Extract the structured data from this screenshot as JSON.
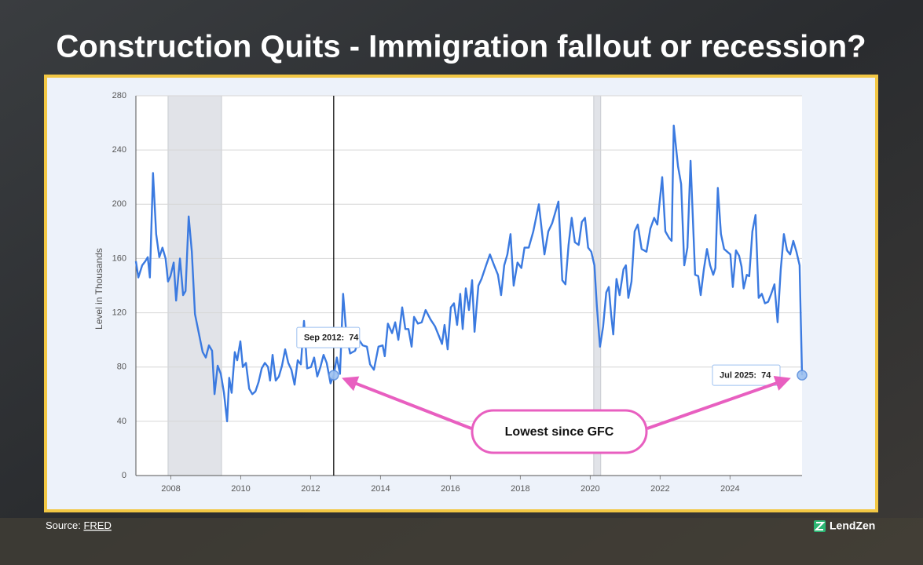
{
  "chart_data": {
    "type": "line",
    "title": "Construction Quits - Immigration fallout or recession?",
    "y_label": "Level in Thousands",
    "source_prefix": "Source:",
    "source_link": "FRED",
    "brand": "LendZen",
    "color": "#3b7ae0",
    "grid": "y",
    "xlim": [
      2007,
      2026.06
    ],
    "ylim": [
      0,
      280
    ],
    "xticks": [
      2008,
      2010,
      2012,
      2014,
      2016,
      2018,
      2020,
      2022,
      2024
    ],
    "yticks": [
      0,
      40,
      80,
      120,
      160,
      200,
      240,
      280
    ],
    "recessions": [
      [
        2007.92,
        2009.45
      ],
      [
        2020.1,
        2020.3
      ]
    ],
    "x": [
      2007.0,
      2007.07,
      2007.18,
      2007.27,
      2007.34,
      2007.4,
      2007.49,
      2007.58,
      2007.67,
      2007.76,
      2007.85,
      2007.92,
      2007.99,
      2008.08,
      2008.15,
      2008.26,
      2008.35,
      2008.42,
      2008.51,
      2008.6,
      2008.69,
      2008.8,
      2008.91,
      2009.0,
      2009.09,
      2009.18,
      2009.25,
      2009.34,
      2009.43,
      2009.52,
      2009.61,
      2009.67,
      2009.74,
      2009.83,
      2009.9,
      2009.99,
      2010.06,
      2010.15,
      2010.24,
      2010.33,
      2010.42,
      2010.51,
      2010.6,
      2010.69,
      2010.78,
      2010.84,
      2010.91,
      2011.0,
      2011.09,
      2011.18,
      2011.27,
      2011.36,
      2011.45,
      2011.54,
      2011.63,
      2011.72,
      2011.81,
      2011.9,
      2012.01,
      2012.1,
      2012.19,
      2012.28,
      2012.37,
      2012.46,
      2012.57,
      2012.66,
      2012.75,
      2012.84,
      2012.93,
      2013.02,
      2013.13,
      2013.27,
      2013.38,
      2013.49,
      2013.61,
      2013.7,
      2013.81,
      2013.94,
      2014.06,
      2014.12,
      2014.21,
      2014.33,
      2014.42,
      2014.51,
      2014.62,
      2014.71,
      2014.8,
      2014.89,
      2014.96,
      2015.07,
      2015.18,
      2015.29,
      2015.43,
      2015.56,
      2015.67,
      2015.76,
      2015.83,
      2015.92,
      2016.01,
      2016.1,
      2016.19,
      2016.28,
      2016.35,
      2016.44,
      2016.53,
      2016.62,
      2016.69,
      2016.8,
      2016.89,
      2017.02,
      2017.13,
      2017.25,
      2017.36,
      2017.45,
      2017.54,
      2017.63,
      2017.72,
      2017.81,
      2017.92,
      2018.03,
      2018.12,
      2018.24,
      2018.37,
      2018.53,
      2018.69,
      2018.8,
      2018.91,
      2019.09,
      2019.2,
      2019.29,
      2019.38,
      2019.47,
      2019.56,
      2019.67,
      2019.76,
      2019.85,
      2019.94,
      2020.03,
      2020.12,
      2020.19,
      2020.28,
      2020.37,
      2020.46,
      2020.53,
      2020.6,
      2020.66,
      2020.75,
      2020.84,
      2020.95,
      2021.02,
      2021.09,
      2021.18,
      2021.27,
      2021.36,
      2021.47,
      2021.61,
      2021.72,
      2021.83,
      2021.92,
      2022.06,
      2022.15,
      2022.26,
      2022.33,
      2022.39,
      2022.51,
      2022.6,
      2022.69,
      2022.78,
      2022.87,
      2023.0,
      2023.09,
      2023.16,
      2023.25,
      2023.34,
      2023.43,
      2023.52,
      2023.58,
      2023.65,
      2023.74,
      2023.83,
      2023.92,
      2024.01,
      2024.08,
      2024.17,
      2024.26,
      2024.33,
      2024.39,
      2024.48,
      2024.55,
      2024.64,
      2024.73,
      2024.82,
      2024.91,
      2025.0,
      2025.09,
      2025.18,
      2025.27,
      2025.36,
      2025.45,
      2025.54,
      2025.63,
      2025.72,
      2025.81,
      2025.9,
      2025.99,
      2026.06
    ],
    "values": [
      158,
      146,
      155,
      158,
      161,
      146,
      223,
      178,
      161,
      168,
      160,
      143,
      147,
      157,
      129,
      160,
      133,
      136,
      191,
      165,
      119,
      105,
      91,
      87,
      96,
      92,
      60,
      81,
      75,
      61,
      40,
      72,
      61,
      91,
      85,
      99,
      80,
      83,
      64,
      60,
      62,
      69,
      79,
      83,
      80,
      70,
      89,
      70,
      73,
      81,
      93,
      83,
      78,
      67,
      85,
      82,
      114,
      79,
      80,
      87,
      73,
      80,
      89,
      83,
      68,
      74,
      87,
      75,
      134,
      105,
      90,
      92,
      100,
      96,
      95,
      82,
      78,
      95,
      96,
      88,
      112,
      105,
      113,
      100,
      124,
      108,
      108,
      95,
      117,
      112,
      113,
      122,
      115,
      110,
      103,
      97,
      111,
      93,
      124,
      127,
      111,
      134,
      108,
      138,
      122,
      144,
      106,
      140,
      145,
      155,
      163,
      155,
      148,
      133,
      155,
      163,
      178,
      140,
      157,
      153,
      168,
      168,
      180,
      200,
      163,
      180,
      186,
      202,
      144,
      141,
      170,
      190,
      172,
      170,
      187,
      190,
      168,
      165,
      155,
      125,
      95,
      110,
      135,
      139,
      118,
      104,
      145,
      133,
      152,
      155,
      131,
      143,
      180,
      185,
      167,
      165,
      182,
      190,
      185,
      220,
      180,
      175,
      173,
      258,
      228,
      215,
      155,
      168,
      232,
      148,
      147,
      133,
      152,
      167,
      155,
      148,
      153,
      212,
      178,
      167,
      165,
      163,
      139,
      166,
      162,
      154,
      138,
      148,
      147,
      180,
      192,
      131,
      134,
      127,
      128,
      134,
      141,
      113,
      152,
      178,
      166,
      163,
      173,
      165,
      155,
      74
    ],
    "annotations": [
      {
        "label": "Sep 2012:",
        "value": 74,
        "x": 2012.66
      },
      {
        "label": "Jul 2025:",
        "value": 74,
        "x": 2026.06
      }
    ],
    "callout": "Lowest since GFC"
  }
}
